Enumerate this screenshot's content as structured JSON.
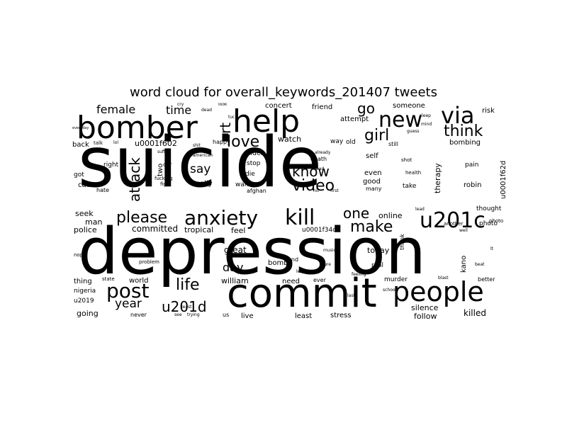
{
  "title": "word cloud for overall_keywords_201407 tweets",
  "text_color": "#000000",
  "background_color": "#ffffff",
  "words": [
    "suicide",
    "depression",
    "commit",
    "help",
    "bomber",
    "people",
    "anxiety",
    "kill",
    "new",
    "via",
    "post",
    "u201c",
    "love",
    "make",
    "girl",
    "think",
    "video",
    "know",
    "please",
    "life",
    "u201d",
    "attack",
    "one",
    "go",
    "rt",
    "female",
    "time",
    "say",
    "year",
    "day",
    "william",
    "committed",
    "tropical",
    "feel",
    "great",
    "today",
    "online",
    "police",
    "seek",
    "man",
    "therapy",
    "kano",
    "silence",
    "follow",
    "killed",
    "stress",
    "least",
    "live",
    "need",
    "world",
    "thing",
    "going",
    "u2019",
    "really",
    "want",
    "die",
    "stop",
    "afghan",
    "much",
    "self",
    "even",
    "good",
    "many",
    "take",
    "robin",
    "watch",
    "attempt",
    "friend",
    "concert",
    "someone",
    "risk",
    "bombing",
    "way",
    "old",
    "death",
    "two",
    "car",
    "fucking",
    "fight",
    "happy",
    "back",
    "right",
    "got",
    "cause",
    "hate",
    "u0001f602",
    "u0001f62d",
    "u0001f34d",
    "thought",
    "photo",
    "pain",
    "photo",
    "bomb",
    "real",
    "murder",
    "better",
    "nigeria",
    "state",
    "ever",
    "never",
    "us",
    "trying",
    "see",
    "end",
    "still",
    "guess",
    "mind",
    "sleep",
    "another",
    "thank",
    "health",
    "shot",
    "hit",
    "first",
    "last",
    "lead",
    "dead",
    "tuck",
    "talk",
    "lol",
    "everyday",
    "nope",
    "lt",
    "well",
    "music",
    "beat",
    "blast",
    "feeling",
    "suffer",
    "american",
    "least",
    "sure",
    "left",
    "problem",
    "shit",
    "already",
    "bad",
    "school",
    "look",
    "cry"
  ]
}
